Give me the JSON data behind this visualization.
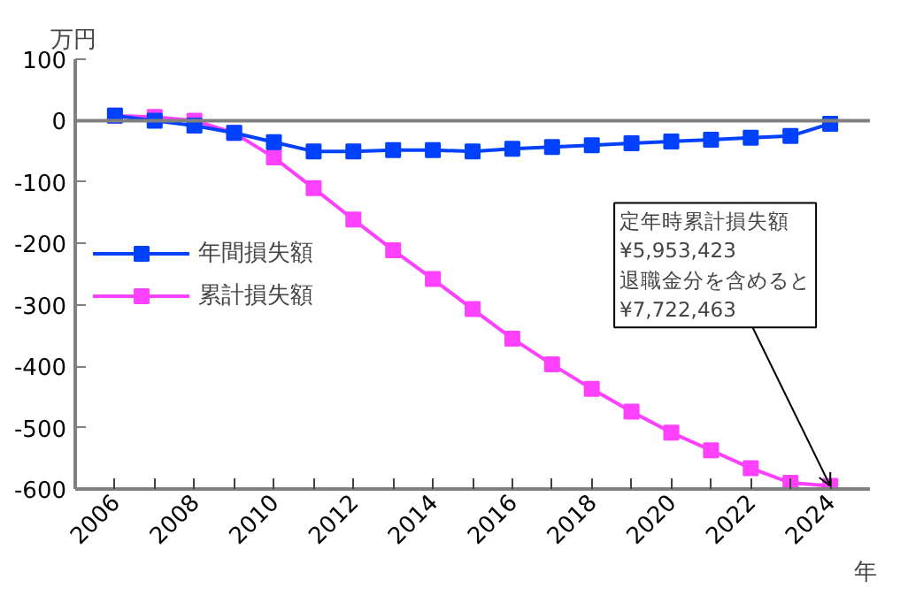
{
  "chart_data": {
    "type": "line",
    "ylabel": "万円",
    "xlabel": "年",
    "x": [
      2006,
      2007,
      2008,
      2009,
      2010,
      2011,
      2012,
      2013,
      2014,
      2015,
      2016,
      2017,
      2018,
      2019,
      2020,
      2021,
      2022,
      2023,
      2024
    ],
    "series": [
      {
        "name": "年間損失額",
        "color": "#0040ff",
        "values": [
          8,
          0,
          -8,
          -20,
          -35,
          -50,
          -50,
          -48,
          -48,
          -50,
          -46,
          -43,
          -40,
          -37,
          -34,
          -31,
          -28,
          -25,
          -5
        ]
      },
      {
        "name": "累計損失額",
        "color": "#ff40ff",
        "values": [
          8,
          6,
          0,
          -20,
          -60,
          -110,
          -161,
          -211,
          -258,
          -307,
          -355,
          -397,
          -437,
          -474,
          -508,
          -537,
          -566,
          -590,
          -595
        ]
      }
    ],
    "xlim": [
      2005,
      2025
    ],
    "xticks": [
      2006,
      {
        "value": 2007,
        "label": null
      },
      2008,
      {
        "value": 2009,
        "label": null
      },
      2010,
      {
        "value": 2011,
        "label": null
      },
      2012,
      {
        "value": 2013,
        "label": null
      },
      2014,
      {
        "value": 2015,
        "label": null
      },
      2016,
      {
        "value": 2017,
        "label": null
      },
      2018,
      {
        "value": 2019,
        "label": null
      },
      2020,
      {
        "value": 2021,
        "label": null
      },
      2022,
      {
        "value": 2023,
        "label": null
      },
      2024
    ],
    "ylim": [
      -600,
      100
    ],
    "yticks": [
      -600,
      -500,
      -400,
      -300,
      -200,
      -100,
      0,
      100
    ],
    "ref_lines": [
      {
        "axis": "y",
        "value": 0,
        "color": "#808080"
      }
    ],
    "annotations": [
      {
        "text": "定年時累計損失額\n¥5,953,423\n退職金分を含めると\n¥7,722,463",
        "x": 2024,
        "y": -595
      }
    ],
    "grid": false,
    "legend": "left",
    "marker": "square",
    "line_style": "solid"
  }
}
